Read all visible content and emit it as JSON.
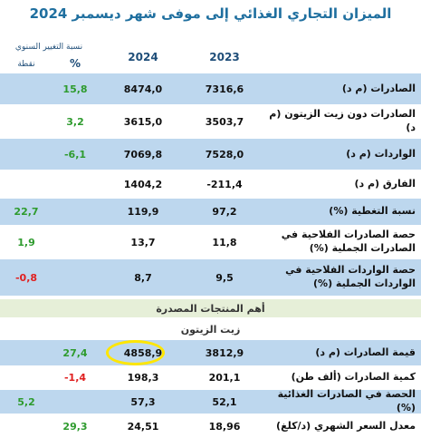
{
  "title": "الميزان التجاري الغذائي إلى موفى شهر ديسمبر 2024",
  "header": {
    "change_label": "نسبة التغيير السنوي",
    "pct": "%",
    "point": "نقطة",
    "y2024": "2024",
    "y2023": "2023"
  },
  "rows": [
    {
      "label": "الصادرات (م د)",
      "y2023": "7316,6",
      "y2024": "8474,0",
      "pct": "15,8",
      "pt": ""
    },
    {
      "label": "الصادرات دون زيت الزيتون (م د)",
      "y2023": "3503,7",
      "y2024": "3615,0",
      "pct": "3,2",
      "pt": ""
    },
    {
      "label": "الواردات (م د)",
      "y2023": "7528,0",
      "y2024": "7069,8",
      "pct": "-6,1",
      "pt": ""
    },
    {
      "label": "الفارق (م د)",
      "y2023": "-211,4",
      "y2024": "1404,2",
      "pct": "",
      "pt": ""
    },
    {
      "label": "نسبة التغطية (%)",
      "y2023": "97,2",
      "y2024": "119,9",
      "pct": "",
      "pt": "22,7"
    },
    {
      "label": "حصة الصادرات الفلاحية في الصادرات الجملية (%)",
      "y2023": "11,8",
      "y2024": "13,7",
      "pct": "",
      "pt": "1,9"
    },
    {
      "label": "حصة الواردات الفلاحية في الواردات الجملية (%)",
      "y2023": "9,5",
      "y2024": "8,7",
      "pct": "",
      "pt": "-0,8"
    }
  ],
  "section_title": "أهم المنتجات المصدرة",
  "sub_title": "زيت الزيتون",
  "olive_rows": [
    {
      "label": "قيمة الصادرات (م د)",
      "y2023": "3812,9",
      "y2024": "4858,9",
      "pct": "27,4",
      "pt": ""
    },
    {
      "label": "كمية الصادرات (ألف طن)",
      "y2023": "201,1",
      "y2024": "198,3",
      "pct": "-1,4",
      "pt": ""
    },
    {
      "label": "الحصة في الصادرات الغذائية (%)",
      "y2023": "52,1",
      "y2024": "57,3",
      "pct": "",
      "pt": "5,2"
    },
    {
      "label": "معدل السعر الشهري (د/كلغ)",
      "y2023": "18,96",
      "y2024": "24,51",
      "pct": "29,3",
      "pt": ""
    }
  ],
  "colors": {
    "blue": "#bdd7ee",
    "green_text": "#2e9b2e",
    "red_text": "#e02020",
    "title": "#1f6f9f",
    "highlight": "#ffe600"
  }
}
